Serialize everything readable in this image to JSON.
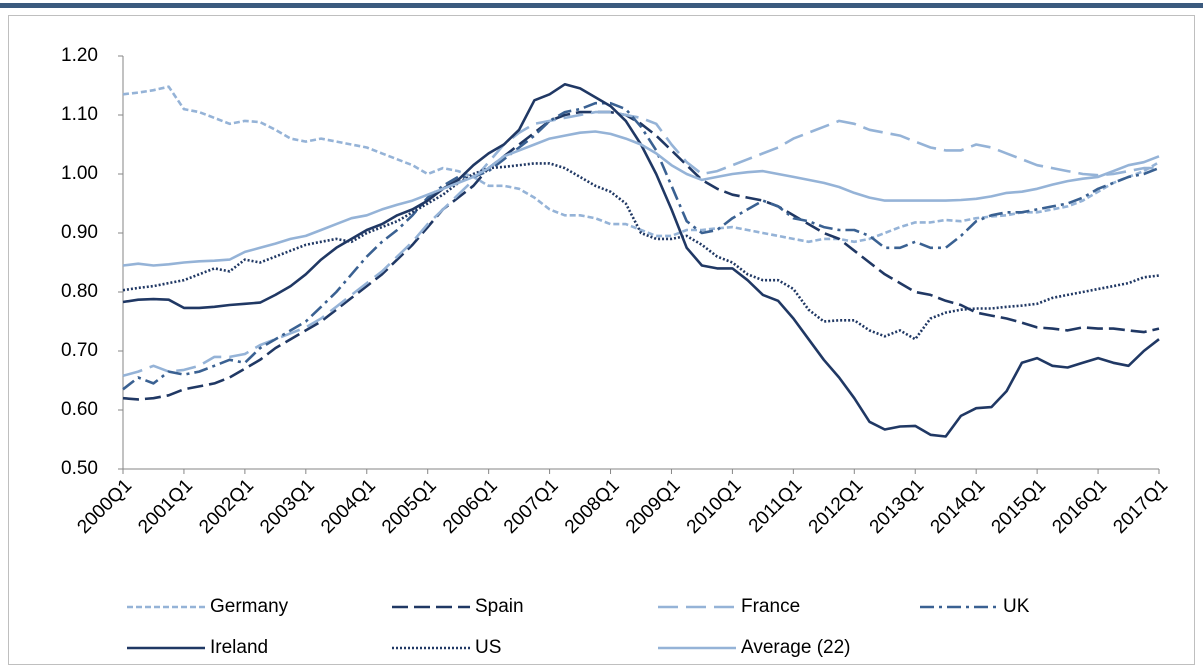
{
  "chart_data": {
    "type": "line",
    "categories": [
      "2000Q1",
      null,
      null,
      null,
      "2001Q1",
      null,
      null,
      null,
      "2002Q1",
      null,
      null,
      null,
      "2003Q1",
      null,
      null,
      null,
      "2004Q1",
      null,
      null,
      null,
      "2005Q1",
      null,
      null,
      null,
      "2006Q1",
      null,
      null,
      null,
      "2007Q1",
      null,
      null,
      null,
      "2008Q1",
      null,
      null,
      null,
      "2009Q1",
      null,
      null,
      null,
      "2010Q1",
      null,
      null,
      null,
      "2011Q1",
      null,
      null,
      null,
      "2012Q1",
      null,
      null,
      null,
      "2013Q1",
      null,
      null,
      null,
      "2014Q1",
      null,
      null,
      null,
      "2015Q1",
      null,
      null,
      null,
      "2016Q1",
      null,
      null,
      null,
      "2017Q1"
    ],
    "ylim": [
      0.5,
      1.2
    ],
    "yticks": [
      {
        "value": 0.5,
        "label": "0.50"
      },
      {
        "value": 0.6,
        "label": "0.60"
      },
      {
        "value": 0.7,
        "label": "0.70"
      },
      {
        "value": 0.8,
        "label": "0.80"
      },
      {
        "value": 0.9,
        "label": "0.90"
      },
      {
        "value": 1.0,
        "label": "1.00"
      },
      {
        "value": 1.1,
        "label": "1.10"
      },
      {
        "value": 1.2,
        "label": "1.20"
      }
    ],
    "series": [
      {
        "name": "Germany",
        "color": "#95b3d7",
        "dash": "6,3",
        "values": [
          1.135,
          1.138,
          1.142,
          1.148,
          1.11,
          1.105,
          1.095,
          1.085,
          1.09,
          1.088,
          1.075,
          1.06,
          1.055,
          1.06,
          1.055,
          1.05,
          1.045,
          1.035,
          1.025,
          1.015,
          1.0,
          1.01,
          1.005,
          0.995,
          0.98,
          0.98,
          0.975,
          0.96,
          0.94,
          0.93,
          0.93,
          0.925,
          0.915,
          0.915,
          0.905,
          0.895,
          0.895,
          0.905,
          0.905,
          0.908,
          0.91,
          0.905,
          0.9,
          0.895,
          0.89,
          0.885,
          0.89,
          0.89,
          0.885,
          0.89,
          0.9,
          0.91,
          0.918,
          0.918,
          0.922,
          0.92,
          0.925,
          0.928,
          0.93,
          0.935,
          0.935,
          0.94,
          0.945,
          0.955,
          0.97,
          0.985,
          0.995,
          1.005,
          1.02
        ]
      },
      {
        "name": "Spain",
        "color": "#203864",
        "dash": "16,6",
        "values": [
          0.62,
          0.618,
          0.62,
          0.625,
          0.635,
          0.64,
          0.645,
          0.655,
          0.67,
          0.685,
          0.705,
          0.72,
          0.735,
          0.75,
          0.77,
          0.79,
          0.81,
          0.83,
          0.855,
          0.88,
          0.91,
          0.94,
          0.96,
          0.98,
          1.01,
          1.03,
          1.05,
          1.07,
          1.09,
          1.1,
          1.105,
          1.105,
          1.105,
          1.1,
          1.085,
          1.065,
          1.04,
          1.015,
          0.99,
          0.975,
          0.965,
          0.96,
          0.955,
          0.945,
          0.93,
          0.915,
          0.9,
          0.89,
          0.87,
          0.85,
          0.83,
          0.815,
          0.8,
          0.795,
          0.785,
          0.778,
          0.765,
          0.76,
          0.755,
          0.748,
          0.74,
          0.738,
          0.735,
          0.74,
          0.738,
          0.738,
          0.735,
          0.732,
          0.738
        ]
      },
      {
        "name": "France",
        "color": "#95b3d7",
        "dash": "20,8",
        "values": [
          0.658,
          0.665,
          0.675,
          0.665,
          0.668,
          0.675,
          0.69,
          0.69,
          0.695,
          0.71,
          0.72,
          0.73,
          0.74,
          0.755,
          0.775,
          0.795,
          0.815,
          0.835,
          0.86,
          0.885,
          0.915,
          0.94,
          0.965,
          0.99,
          1.02,
          1.05,
          1.07,
          1.085,
          1.09,
          1.095,
          1.1,
          1.105,
          1.105,
          1.1,
          1.095,
          1.085,
          1.05,
          1.02,
          1.0,
          1.005,
          1.015,
          1.025,
          1.035,
          1.045,
          1.06,
          1.07,
          1.08,
          1.09,
          1.085,
          1.075,
          1.07,
          1.065,
          1.055,
          1.045,
          1.04,
          1.04,
          1.05,
          1.045,
          1.035,
          1.025,
          1.015,
          1.01,
          1.005,
          1.0,
          0.998,
          1.0,
          1.005,
          1.01,
          1.01
        ]
      },
      {
        "name": "UK",
        "color": "#3a6192",
        "dash": "14,5,3,5",
        "values": [
          0.635,
          0.655,
          0.645,
          0.665,
          0.66,
          0.665,
          0.675,
          0.685,
          0.68,
          0.705,
          0.72,
          0.735,
          0.75,
          0.775,
          0.8,
          0.83,
          0.86,
          0.885,
          0.905,
          0.93,
          0.96,
          0.98,
          0.995,
          0.995,
          1.005,
          1.025,
          1.045,
          1.065,
          1.09,
          1.105,
          1.11,
          1.12,
          1.12,
          1.11,
          1.08,
          1.04,
          0.98,
          0.92,
          0.9,
          0.905,
          0.925,
          0.94,
          0.955,
          0.945,
          0.925,
          0.92,
          0.91,
          0.905,
          0.905,
          0.895,
          0.875,
          0.875,
          0.885,
          0.875,
          0.875,
          0.895,
          0.92,
          0.93,
          0.935,
          0.935,
          0.94,
          0.945,
          0.95,
          0.96,
          0.975,
          0.985,
          0.995,
          1.0,
          1.01
        ]
      },
      {
        "name": "Ireland",
        "color": "#203864",
        "dash": "none",
        "values": [
          0.783,
          0.787,
          0.788,
          0.787,
          0.773,
          0.773,
          0.775,
          0.778,
          0.78,
          0.782,
          0.795,
          0.81,
          0.83,
          0.855,
          0.875,
          0.89,
          0.905,
          0.915,
          0.93,
          0.94,
          0.955,
          0.975,
          0.99,
          1.015,
          1.035,
          1.05,
          1.075,
          1.125,
          1.135,
          1.152,
          1.145,
          1.13,
          1.115,
          1.09,
          1.05,
          1.0,
          0.94,
          0.875,
          0.845,
          0.84,
          0.84,
          0.82,
          0.795,
          0.785,
          0.755,
          0.72,
          0.685,
          0.655,
          0.62,
          0.58,
          0.567,
          0.572,
          0.573,
          0.558,
          0.555,
          0.59,
          0.603,
          0.605,
          0.632,
          0.68,
          0.688,
          0.675,
          0.672,
          0.68,
          0.688,
          0.68,
          0.675,
          0.7,
          0.72
        ]
      },
      {
        "name": "US",
        "color": "#203864",
        "dash": "2,2",
        "values": [
          0.803,
          0.807,
          0.81,
          0.815,
          0.82,
          0.83,
          0.84,
          0.835,
          0.855,
          0.85,
          0.86,
          0.87,
          0.88,
          0.885,
          0.89,
          0.885,
          0.9,
          0.91,
          0.92,
          0.935,
          0.95,
          0.965,
          0.985,
          1.0,
          1.01,
          1.012,
          1.015,
          1.018,
          1.018,
          1.01,
          0.995,
          0.98,
          0.97,
          0.95,
          0.9,
          0.89,
          0.89,
          0.895,
          0.88,
          0.86,
          0.85,
          0.83,
          0.82,
          0.82,
          0.805,
          0.77,
          0.75,
          0.752,
          0.752,
          0.735,
          0.725,
          0.735,
          0.72,
          0.755,
          0.765,
          0.77,
          0.772,
          0.772,
          0.775,
          0.777,
          0.78,
          0.79,
          0.795,
          0.8,
          0.805,
          0.81,
          0.815,
          0.825,
          0.828
        ]
      },
      {
        "name": "Average (22)",
        "color": "#95b3d7",
        "dash": "none",
        "values": [
          0.845,
          0.848,
          0.845,
          0.847,
          0.85,
          0.852,
          0.853,
          0.855,
          0.868,
          0.875,
          0.882,
          0.89,
          0.895,
          0.905,
          0.915,
          0.925,
          0.93,
          0.94,
          0.948,
          0.955,
          0.965,
          0.975,
          0.985,
          0.995,
          1.01,
          1.03,
          1.04,
          1.05,
          1.06,
          1.065,
          1.07,
          1.072,
          1.068,
          1.06,
          1.05,
          1.035,
          1.015,
          1.0,
          0.99,
          0.995,
          1.0,
          1.003,
          1.005,
          1.0,
          0.995,
          0.99,
          0.985,
          0.978,
          0.968,
          0.96,
          0.955,
          0.955,
          0.955,
          0.955,
          0.955,
          0.956,
          0.958,
          0.962,
          0.968,
          0.97,
          0.975,
          0.982,
          0.988,
          0.992,
          0.995,
          1.005,
          1.015,
          1.02,
          1.03
        ]
      }
    ]
  }
}
